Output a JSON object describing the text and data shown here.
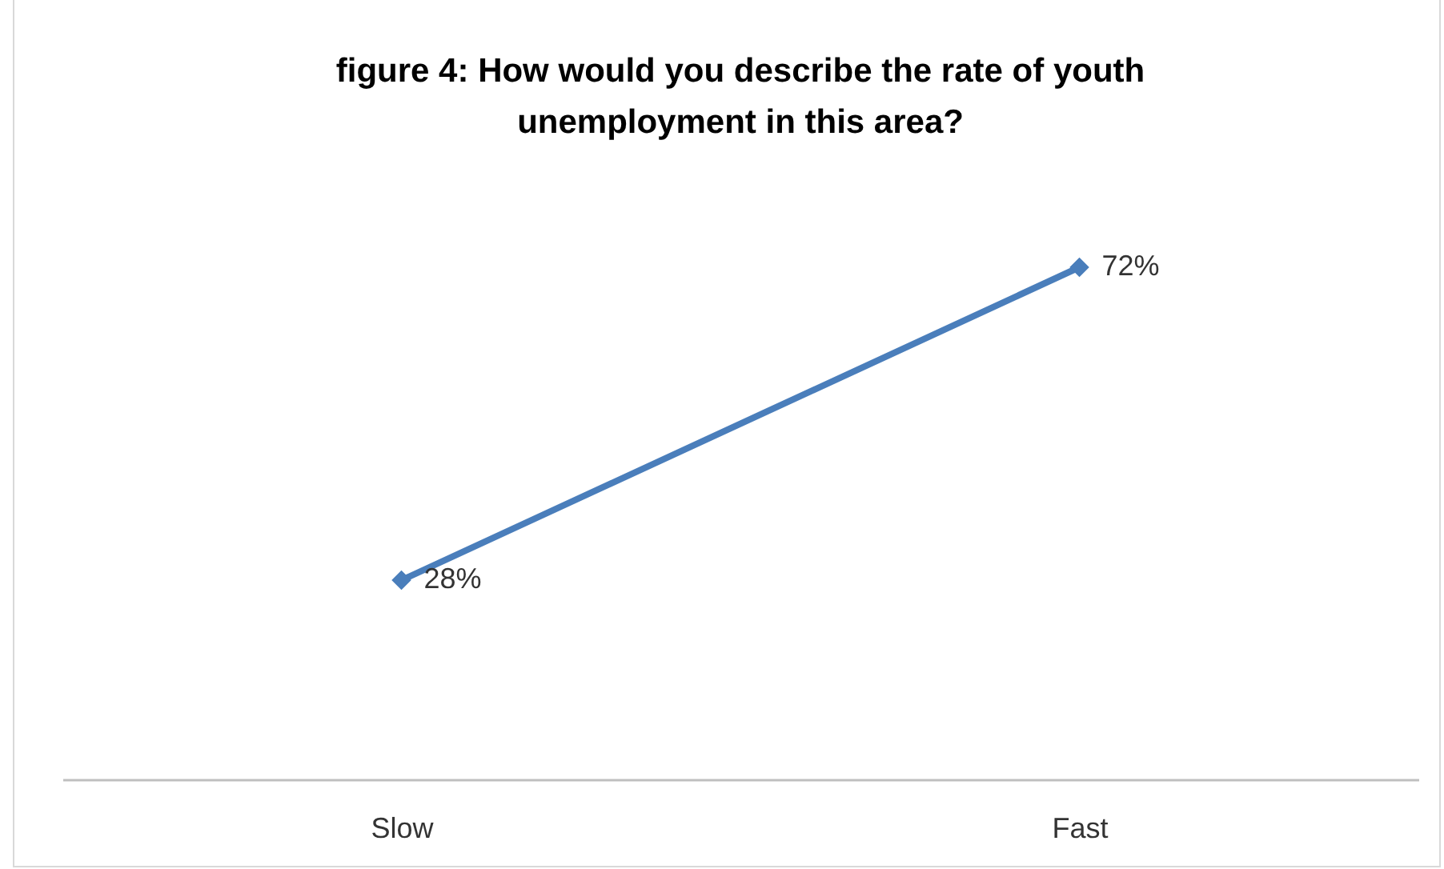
{
  "chart_data": {
    "type": "line",
    "title": "figure 4: How would you describe the rate of youth unemployment in this area?",
    "categories": [
      "Slow",
      "Fast"
    ],
    "series": [
      {
        "color": "#4a7ebb",
        "values": [
          28,
          72
        ],
        "value_labels": [
          "28%",
          "72%"
        ]
      }
    ],
    "tick_labels": "x",
    "grid": false,
    "marker": "diamond",
    "line_style": "solid"
  }
}
